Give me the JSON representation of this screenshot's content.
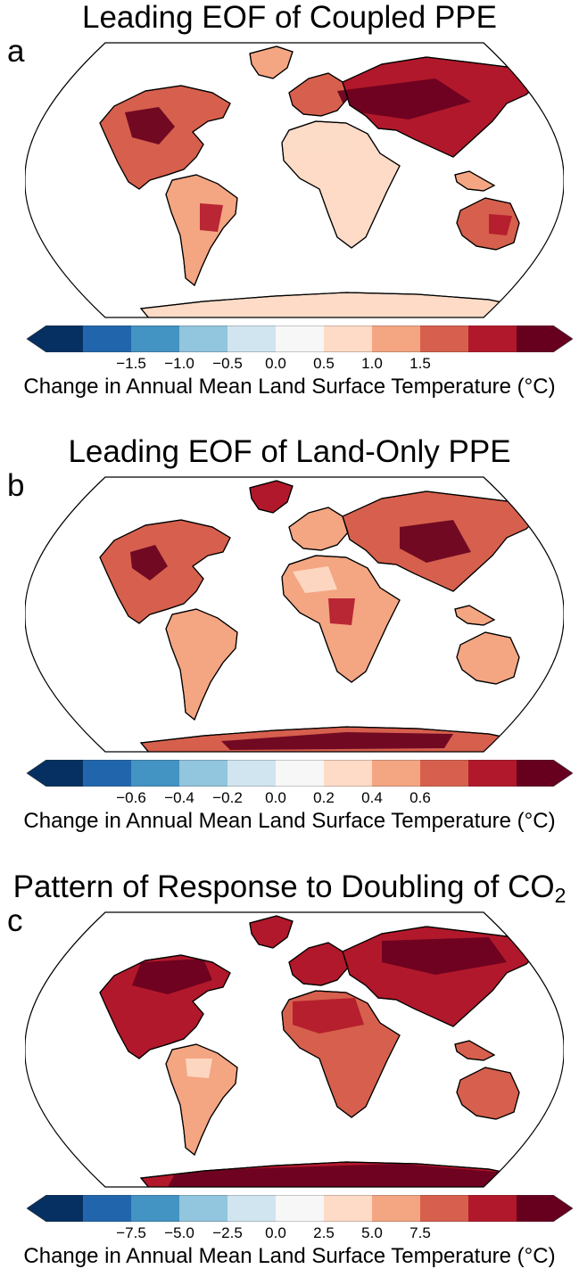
{
  "colorbar_colors": [
    "#053061",
    "#2166ac",
    "#4393c3",
    "#92c5de",
    "#d1e5f0",
    "#f7f7f7",
    "#fddbc7",
    "#f4a582",
    "#d6604d",
    "#b2182b",
    "#67001f"
  ],
  "coastline_color": "#000000",
  "panels": [
    {
      "letter": "a",
      "title": "Leading EOF of Coupled PPE",
      "title_sub": "",
      "ticks": [
        "−1.5",
        "−1.0",
        "−0.5",
        "0.0",
        "0.5",
        "1.0",
        "1.5"
      ],
      "colorbar_label": "Change in Annual Mean Land Surface Temperature (°C)",
      "pattern": "coupled"
    },
    {
      "letter": "b",
      "title": "Leading EOF of Land-Only PPE",
      "title_sub": "",
      "ticks": [
        "−0.6",
        "−0.4",
        "−0.2",
        "0.0",
        "0.2",
        "0.4",
        "0.6"
      ],
      "colorbar_label": "Change in Annual Mean Land Surface Temperature (°C)",
      "pattern": "land"
    },
    {
      "letter": "c",
      "title": "Pattern of Response to Doubling of CO",
      "title_sub": "2",
      "ticks": [
        "−7.5",
        "−5.0",
        "−2.5",
        "0.0",
        "2.5",
        "5.0",
        "7.5"
      ],
      "colorbar_label": "Change in Annual Mean Land Surface Temperature (°C)",
      "pattern": "co2"
    }
  ]
}
